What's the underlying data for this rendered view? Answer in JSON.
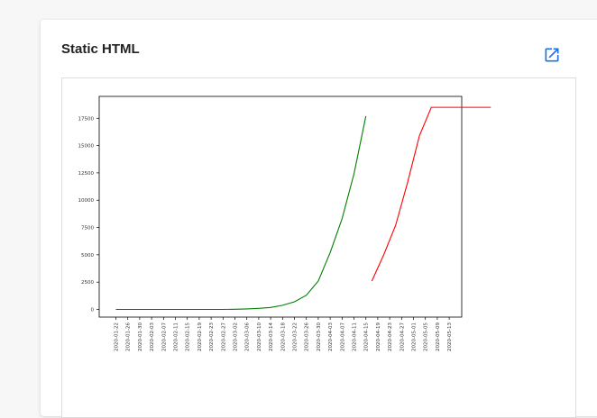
{
  "card": {
    "title": "Static HTML",
    "open_icon": "open-in-new-icon"
  },
  "colors": {
    "accent": "#1a73e8",
    "series_green": "#008000",
    "series_red": "#ff0000"
  },
  "chart_data": {
    "type": "line",
    "title": "",
    "xlabel": "",
    "ylabel": "",
    "grid": false,
    "x_ticks": [
      "2020-01-22",
      "2020-01-26",
      "2020-01-30",
      "2020-02-03",
      "2020-02-07",
      "2020-02-11",
      "2020-02-15",
      "2020-02-19",
      "2020-02-23",
      "2020-02-27",
      "2020-03-02",
      "2020-03-06",
      "2020-03-10",
      "2020-03-14",
      "2020-03-18",
      "2020-03-22",
      "2020-03-26",
      "2020-03-30",
      "2020-04-03",
      "2020-04-07",
      "2020-04-11",
      "2020-04-15",
      "2020-04-19",
      "2020-04-23",
      "2020-04-27",
      "2020-05-01",
      "2020-05-05",
      "2020-05-09",
      "2020-05-13"
    ],
    "y_ticks": [
      0,
      2500,
      5000,
      7500,
      10000,
      12500,
      15000,
      17500
    ],
    "ylim": [
      -700,
      19500
    ],
    "series": [
      {
        "color": "#008000",
        "points": [
          [
            "2020-01-22",
            0
          ],
          [
            "2020-01-26",
            0
          ],
          [
            "2020-01-30",
            0
          ],
          [
            "2020-02-03",
            0
          ],
          [
            "2020-02-07",
            0
          ],
          [
            "2020-02-11",
            0
          ],
          [
            "2020-02-15",
            0
          ],
          [
            "2020-02-19",
            0
          ],
          [
            "2020-02-23",
            0
          ],
          [
            "2020-02-27",
            0
          ],
          [
            "2020-03-02",
            20
          ],
          [
            "2020-03-06",
            50
          ],
          [
            "2020-03-10",
            100
          ],
          [
            "2020-03-14",
            180
          ],
          [
            "2020-03-18",
            380
          ],
          [
            "2020-03-22",
            700
          ],
          [
            "2020-03-26",
            1300
          ],
          [
            "2020-03-30",
            2600
          ],
          [
            "2020-04-03",
            5200
          ],
          [
            "2020-04-07",
            8300
          ],
          [
            "2020-04-11",
            12400
          ],
          [
            "2020-04-15",
            17700
          ]
        ]
      },
      {
        "color": "#ff0000",
        "points": [
          [
            "2020-04-17",
            2600
          ],
          [
            "2020-04-21",
            5000
          ],
          [
            "2020-04-25",
            7700
          ],
          [
            "2020-04-29",
            11600
          ],
          [
            "2020-05-03",
            15900
          ],
          [
            "2020-05-07",
            18500
          ],
          [
            "2020-05-11",
            18500
          ],
          [
            "2020-05-15",
            18500
          ],
          [
            "2020-05-19",
            18500
          ],
          [
            "2020-05-23",
            18500
          ],
          [
            "2020-05-27",
            18500
          ]
        ]
      }
    ]
  }
}
